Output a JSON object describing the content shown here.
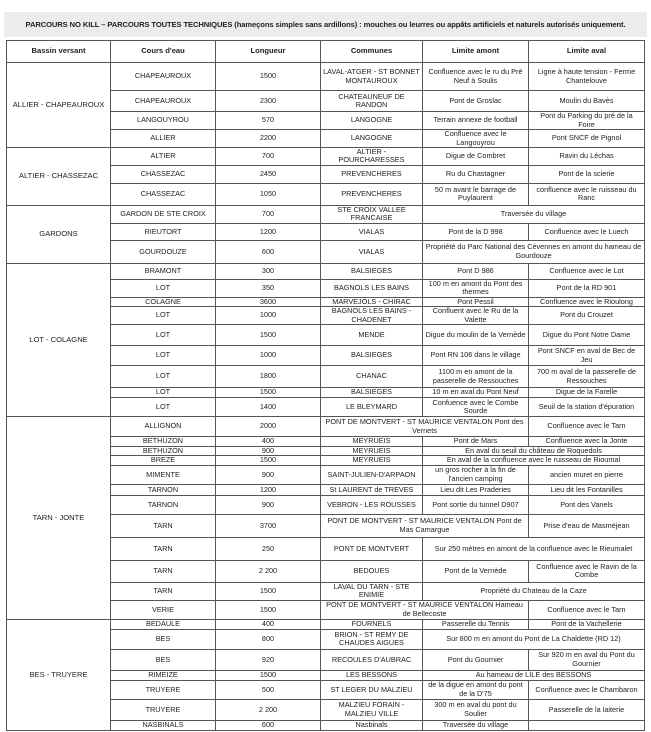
{
  "title": "PARCOURS NO KILL – PARCOURS TOUTES TECHNIQUES (hameçons simples sans ardillons) : mouches ou leurres ou appâts artificiels et naturels autorisés uniquement.",
  "headers": [
    "Bassin versant",
    "Cours d'eau",
    "Longueur",
    "Communes",
    "Limite amont",
    "Limite aval"
  ],
  "groups": [
    {
      "bassin": "ALLIER - CHAPEAUROUX",
      "rows": [
        {
          "cours": "CHAPEAUROUX",
          "longueur": "1500",
          "communes": "LAVAL-ATGER - ST BONNET MONTAUROUX",
          "amont": "Confluence avec le ru du Pré Neuf à Soulis",
          "aval": "Ligne à haute tension - Ferme Chantelouve"
        },
        {
          "cours": "CHAPEAUROUX",
          "longueur": "2300",
          "communes": "CHATEAUNEUF DE RANDON",
          "amont": "Pont de Groslac",
          "aval": "Moulin du Bavès"
        },
        {
          "cours": "LANGOUYROU",
          "longueur": "570",
          "communes": "LANGOGNE",
          "amont": "Terrain annexe de football",
          "aval": "Pont du Parking du pré de la Foire"
        },
        {
          "cours": "ALLIER",
          "longueur": "2200",
          "communes": "LANGOGNE",
          "amont": "Confluence avec le Langouyrou",
          "aval": "Pont SNCF de Pignol"
        }
      ]
    },
    {
      "bassin": "ALTIER - CHASSEZAC",
      "rows": [
        {
          "cours": "ALTIER",
          "longueur": "700",
          "communes": "ALTIER - POURCHARESSES",
          "amont": "Digue de Combret",
          "aval": "Ravin du Léchas"
        },
        {
          "cours": "CHASSEZAC",
          "longueur": "2450",
          "communes": "PREVENCHERES",
          "amont": "Ru du Chastagner",
          "aval": "Pont de la scierie"
        },
        {
          "cours": "CHASSEZAC",
          "longueur": "1050",
          "communes": "PREVENCHERES",
          "amont": "50 m avant le barrage de Puylaurent",
          "aval": "confluence avec le ruisseau du Ranc"
        }
      ]
    },
    {
      "bassin": "GARDONS",
      "rows": [
        {
          "cours": "GARDON DE STE CROIX",
          "longueur": "700",
          "communes": "STE CROIX VALLEE FRANCAISE",
          "limites": "Traversée du village"
        },
        {
          "cours": "RIEUTORT",
          "longueur": "1200",
          "communes": "VIALAS",
          "amont": "Pont de la D 998",
          "aval": "Confluence avec le Luech"
        },
        {
          "cours": "GOURDOUZE",
          "longueur": "600",
          "communes": "VIALAS",
          "limites": "Propriété du Parc National des Cévennes en amont du hameau de Gourdouze"
        }
      ]
    },
    {
      "bassin": "LOT - COLAGNE",
      "rows": [
        {
          "cours": "BRAMONT",
          "longueur": "300",
          "communes": "BALSIEGES",
          "amont": "Pont D 986",
          "aval": "Confluence avec le Lot"
        },
        {
          "cours": "LOT",
          "longueur": "350",
          "communes": "BAGNOLS LES BAINS",
          "amont": "100 m en amont du Pont des thermes",
          "aval": "Pont de la RD 901"
        },
        {
          "cours": "COLAGNE",
          "longueur": "3600",
          "communes": "MARVEJOLS - CHIRAC",
          "amont": "Pont Pessil",
          "aval": "Confluence avec le Rioulong"
        },
        {
          "cours": "LOT",
          "longueur": "1000",
          "communes": "BAGNOLS LES BAINS - CHADENET",
          "amont": "Confluent avec le Ru de la Valette",
          "aval": "Pont du Crouzet"
        },
        {
          "cours": "LOT",
          "longueur": "1500",
          "communes": "MENDE",
          "amont": "Digue du moulin de la Vernède",
          "aval": "Digue du Pont Notre Dame"
        },
        {
          "cours": "LOT",
          "longueur": "1000",
          "communes": "BALSIEGES",
          "amont": "Pont RN 106 dans le village",
          "aval": "Pont SNCF en aval de Bec de Jeu"
        },
        {
          "cours": "LOT",
          "longueur": "1800",
          "communes": "CHANAC",
          "amont": "1100 m en amont de la passerelle de Ressouches",
          "aval": "700 m aval de la passerelle de Ressouches"
        },
        {
          "cours": "LOT",
          "longueur": "1500",
          "communes": "BALSIEGES",
          "amont": "10 m en aval du Pont Neuf",
          "aval": "Digue de la Farelle"
        },
        {
          "cours": "LOT",
          "longueur": "1400",
          "communes": "LE BLEYMARD",
          "amont": "Confuence avec le Combe Sourde",
          "aval": "Seuil de la station d'épuration"
        }
      ]
    },
    {
      "bassin": "TARN - JONTE",
      "rows": [
        {
          "cours": "ALLIGNON",
          "longueur": "2000",
          "communes_amont": "PONT DE MONTVERT - ST MAURICE VENTALON Pont des Vernets",
          "aval": "Confluence avec le Tarn"
        },
        {
          "cours": "BETHUZON",
          "longueur": "400",
          "communes": "MEYRUEIS",
          "amont": "Pont de Mars",
          "aval": "Confluence avec la Jonte"
        },
        {
          "cours": "BETHUZON",
          "longueur": "900",
          "communes": "MEYRUEIS",
          "limites": "En aval du seuil du château de Roquedols"
        },
        {
          "cours": "BREZE",
          "longueur": "1500",
          "communes": "MEYRUEIS",
          "limites": "En aval de la confluence avec le ruisseau de Rioumal"
        },
        {
          "cours": "MIMENTE",
          "longueur": "900",
          "communes": "SAINT-JULIEN-D'ARPAON",
          "amont": "un gros rocher à la fin de l'ancien camping",
          "aval": "ancien muret en pierre"
        },
        {
          "cours": "TARNON",
          "longueur": "1200",
          "communes": "St LAURENT de TREVES",
          "amont": "Lieu dit Les Praderies",
          "aval": "Lieu dit les Fontanilles"
        },
        {
          "cours": "TARNON",
          "longueur": "900",
          "communes": "VEBRON - LES ROUSSES",
          "amont": "Pont sortie du tunnel D907",
          "aval": "Pont des Vanels"
        },
        {
          "cours": "TARN",
          "longueur": "3700",
          "communes_amont": "PONT DE MONTVERT - ST MAURICE VENTALON Pont de Mas Camargue",
          "aval": "Prise d'eau de Masméjean"
        },
        {
          "cours": "TARN",
          "longueur": "250",
          "communes": "PONT DE MONTVERT",
          "limites": "Sur 250 mètres en amont de la confluence avec le Rieumalet"
        },
        {
          "cours": "TARN",
          "longueur": "2 200",
          "communes": "BEDOUES",
          "amont": "Pont de la Vernède",
          "aval": "Confluence avec le Ravin de la Combe"
        },
        {
          "cours": "TARN",
          "longueur": "1500",
          "communes": "LAVAL DU TARN - STE ENIMIE",
          "limites": "Propriété du Chateau de la Caze"
        },
        {
          "cours": "VERIE",
          "longueur": "1500",
          "communes_amont": "PONT DE MONTVERT - ST MAURICE VENTALON Hameau de Bellecoste",
          "aval": "Confluence avec le Tarn"
        }
      ]
    },
    {
      "bassin": "BES - TRUYERE",
      "rows": [
        {
          "cours": "BEDAULE",
          "longueur": "400",
          "communes": "FOURNELS",
          "amont": "Passerelle du Tennis",
          "aval": "Pont de la Vachellerie"
        },
        {
          "cours": "BES",
          "longueur": "800",
          "communes": "BRION - ST REMY DE CHAUDES AIGUES",
          "limites": "Sur 800 m en amont du Pont de La Chaldette (RD 12)"
        },
        {
          "cours": "BES",
          "longueur": "920",
          "communes": "RECOULES D'AUBRAC",
          "amont": "Pont du Gournier",
          "aval": "Sur 920 m en aval du Pont du Gournier"
        },
        {
          "cours": "RIMEIZE",
          "longueur": "1500",
          "communes": "LES BESSONS",
          "limites": "Au hameau de LILE des BESSONS"
        },
        {
          "cours": "TRUYERE",
          "longueur": "500",
          "communes": "ST LEGER DU MALZIEU",
          "amont": "de la digue en amont du pont de la D'75",
          "aval": "Confluence avec le Chambaron"
        },
        {
          "cours": "TRUYERE",
          "longueur": "2 200",
          "communes": "MALZIEU FORAIN - MALZIEU VILLE",
          "amont": "300 m en aval du pont du Soulier",
          "aval": "Passerelle de la laiterie"
        },
        {
          "cours": "NASBINALS",
          "longueur": "600",
          "communes": "Nasbinals",
          "amont": "Traversée du village",
          "aval": ""
        }
      ]
    }
  ]
}
